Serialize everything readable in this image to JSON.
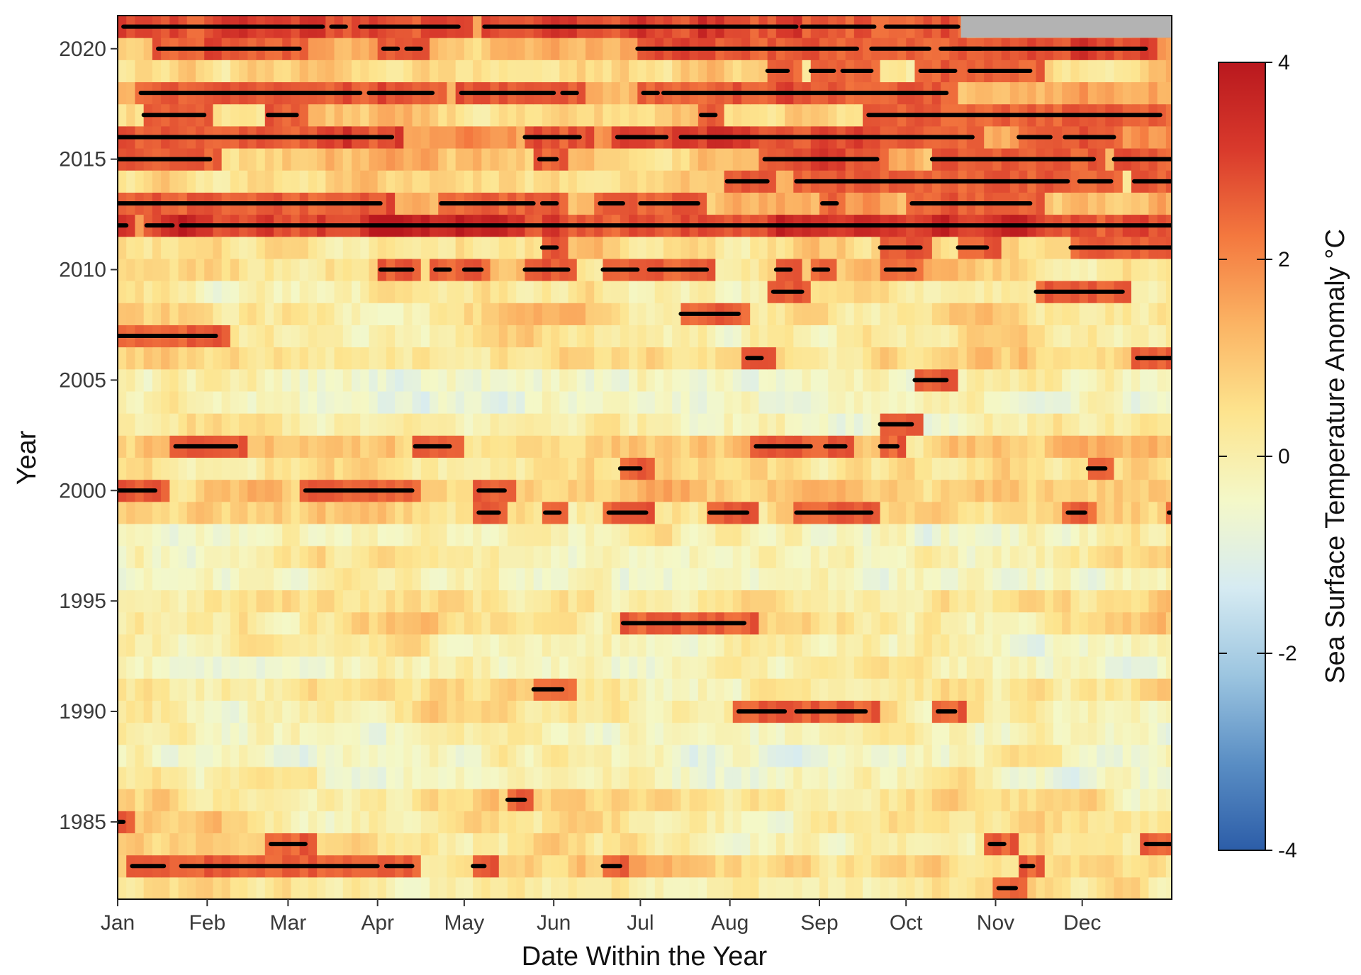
{
  "chart_data": {
    "type": "heatmap",
    "title": "",
    "xlabel": "Date Within the Year",
    "ylabel": "Year",
    "x_tick_labels": [
      "Jan",
      "Feb",
      "Mar",
      "Apr",
      "May",
      "Jun",
      "Jul",
      "Aug",
      "Sep",
      "Oct",
      "Nov",
      "Dec"
    ],
    "x_tick_days": [
      1,
      32,
      60,
      91,
      121,
      152,
      182,
      213,
      244,
      274,
      305,
      335
    ],
    "xlim": [
      1,
      366
    ],
    "y_ticks": [
      1985,
      1990,
      1995,
      2000,
      2005,
      2010,
      2015,
      2020
    ],
    "ylim": [
      1981.5,
      2021.5
    ],
    "years": [
      1982,
      2021
    ],
    "colorbar": {
      "label": "Sea Surface Temperature Anomaly °C",
      "ticks": [
        4,
        2,
        0,
        -2,
        -4
      ],
      "range": [
        -4,
        4
      ],
      "colors": [
        "#2c5da8",
        "#5a8ec4",
        "#9cc5e0",
        "#d6ebf2",
        "#f4f8c8",
        "#fde48e",
        "#fbb464",
        "#f4793f",
        "#d93a2c",
        "#b9181e"
      ]
    },
    "no_data_color": "#b3b3b3",
    "no_data": {
      "year": 2021,
      "start_day": 293,
      "end_day": 366
    },
    "cell_anomaly_by_year": [
      {
        "year": 1982,
        "mean": 0.1
      },
      {
        "year": 1983,
        "mean": 0.6
      },
      {
        "year": 1984,
        "mean": 0.3
      },
      {
        "year": 1985,
        "mean": 0.3
      },
      {
        "year": 1986,
        "mean": 0.3
      },
      {
        "year": 1987,
        "mean": -0.1
      },
      {
        "year": 1988,
        "mean": -0.3
      },
      {
        "year": 1989,
        "mean": -0.2
      },
      {
        "year": 1990,
        "mean": 0.2
      },
      {
        "year": 1991,
        "mean": 0.3
      },
      {
        "year": 1992,
        "mean": -0.2
      },
      {
        "year": 1993,
        "mean": 0.0
      },
      {
        "year": 1994,
        "mean": 0.4
      },
      {
        "year": 1995,
        "mean": 0.4
      },
      {
        "year": 1996,
        "mean": -0.3
      },
      {
        "year": 1997,
        "mean": 0.0
      },
      {
        "year": 1998,
        "mean": -0.2
      },
      {
        "year": 1999,
        "mean": 0.6
      },
      {
        "year": 2000,
        "mean": 0.7
      },
      {
        "year": 2001,
        "mean": 0.3
      },
      {
        "year": 2002,
        "mean": 0.8
      },
      {
        "year": 2003,
        "mean": 0.0
      },
      {
        "year": 2004,
        "mean": -0.5
      },
      {
        "year": 2005,
        "mean": -0.3
      },
      {
        "year": 2006,
        "mean": 0.6
      },
      {
        "year": 2007,
        "mean": 0.2
      },
      {
        "year": 2008,
        "mean": 0.4
      },
      {
        "year": 2009,
        "mean": 0.1
      },
      {
        "year": 2010,
        "mean": 0.8
      },
      {
        "year": 2011,
        "mean": 0.6
      },
      {
        "year": 2012,
        "mean": 2.0
      },
      {
        "year": 2013,
        "mean": 1.3
      },
      {
        "year": 2014,
        "mean": 0.7
      },
      {
        "year": 2015,
        "mean": 1.1
      },
      {
        "year": 2016,
        "mean": 1.5
      },
      {
        "year": 2017,
        "mean": 0.8
      },
      {
        "year": 2018,
        "mean": 1.2
      },
      {
        "year": 2019,
        "mean": 0.6
      },
      {
        "year": 2020,
        "mean": 1.3
      },
      {
        "year": 2021,
        "mean": 1.6
      }
    ],
    "warm_events": [
      {
        "year": 2021,
        "segments": [
          [
            3,
            72
          ],
          [
            75,
            80
          ],
          [
            85,
            119
          ],
          [
            128,
            236
          ],
          [
            238,
            263
          ],
          [
            267,
            292
          ]
        ]
      },
      {
        "year": 2020,
        "segments": [
          [
            15,
            64
          ],
          [
            93,
            98
          ],
          [
            101,
            106
          ],
          [
            181,
            257
          ],
          [
            262,
            282
          ],
          [
            286,
            300
          ],
          [
            290,
            357
          ]
        ]
      },
      {
        "year": 2019,
        "segments": [
          [
            226,
            233
          ],
          [
            241,
            249
          ],
          [
            252,
            262
          ],
          [
            279,
            291
          ],
          [
            296,
            317
          ]
        ]
      },
      {
        "year": 2018,
        "segments": [
          [
            9,
            85
          ],
          [
            88,
            110
          ],
          [
            120,
            152
          ],
          [
            155,
            160
          ],
          [
            183,
            188
          ],
          [
            190,
            288
          ]
        ]
      },
      {
        "year": 2017,
        "segments": [
          [
            10,
            31
          ],
          [
            53,
            63
          ],
          [
            203,
            208
          ],
          [
            261,
            362
          ]
        ]
      },
      {
        "year": 2016,
        "segments": [
          [
            1,
            96
          ],
          [
            142,
            161
          ],
          [
            174,
            191
          ],
          [
            196,
            297
          ],
          [
            313,
            324
          ],
          [
            329,
            346
          ]
        ]
      },
      {
        "year": 2015,
        "segments": [
          [
            1,
            33
          ],
          [
            147,
            153
          ],
          [
            225,
            264
          ],
          [
            283,
            339
          ],
          [
            346,
            366
          ]
        ]
      },
      {
        "year": 2014,
        "segments": [
          [
            212,
            226
          ],
          [
            236,
            330
          ],
          [
            334,
            345
          ],
          [
            353,
            366
          ]
        ]
      },
      {
        "year": 2013,
        "segments": [
          [
            1,
            92
          ],
          [
            113,
            145
          ],
          [
            148,
            153
          ],
          [
            168,
            176
          ],
          [
            182,
            202
          ],
          [
            245,
            250
          ],
          [
            276,
            317
          ]
        ]
      },
      {
        "year": 2012,
        "segments": [
          [
            1,
            4
          ],
          [
            11,
            20
          ],
          [
            23,
            366
          ]
        ]
      },
      {
        "year": 2011,
        "segments": [
          [
            148,
            153
          ],
          [
            265,
            279
          ],
          [
            292,
            302
          ],
          [
            331,
            366
          ]
        ]
      },
      {
        "year": 2010,
        "segments": [
          [
            92,
            103
          ],
          [
            111,
            116
          ],
          [
            121,
            127
          ],
          [
            142,
            157
          ],
          [
            169,
            181
          ],
          [
            185,
            205
          ],
          [
            229,
            234
          ],
          [
            242,
            247
          ],
          [
            267,
            277
          ]
        ]
      },
      {
        "year": 2009,
        "segments": [
          [
            228,
            238
          ],
          [
            319,
            349
          ]
        ]
      },
      {
        "year": 2008,
        "segments": [
          [
            196,
            216
          ]
        ]
      },
      {
        "year": 2007,
        "segments": [
          [
            1,
            35
          ]
        ]
      },
      {
        "year": 2006,
        "segments": [
          [
            219,
            224
          ],
          [
            354,
            366
          ]
        ]
      },
      {
        "year": 2005,
        "segments": [
          [
            277,
            288
          ]
        ]
      },
      {
        "year": 2003,
        "segments": [
          [
            265,
            276
          ]
        ]
      },
      {
        "year": 2002,
        "segments": [
          [
            21,
            42
          ],
          [
            104,
            116
          ],
          [
            222,
            241
          ],
          [
            246,
            253
          ],
          [
            265,
            271
          ]
        ]
      },
      {
        "year": 2001,
        "segments": [
          [
            175,
            182
          ],
          [
            337,
            343
          ]
        ]
      },
      {
        "year": 2000,
        "segments": [
          [
            1,
            14
          ],
          [
            66,
            103
          ],
          [
            126,
            135
          ]
        ]
      },
      {
        "year": 1999,
        "segments": [
          [
            126,
            133
          ],
          [
            149,
            154
          ],
          [
            171,
            184
          ],
          [
            206,
            219
          ],
          [
            236,
            262
          ],
          [
            330,
            336
          ],
          [
            365,
            366
          ]
        ]
      },
      {
        "year": 1994,
        "segments": [
          [
            176,
            218
          ]
        ]
      },
      {
        "year": 1991,
        "segments": [
          [
            145,
            155
          ]
        ]
      },
      {
        "year": 1990,
        "segments": [
          [
            216,
            232
          ],
          [
            236,
            260
          ],
          [
            285,
            291
          ]
        ]
      },
      {
        "year": 1986,
        "segments": [
          [
            136,
            142
          ]
        ]
      },
      {
        "year": 1985,
        "segments": [
          [
            1,
            3
          ]
        ]
      },
      {
        "year": 1984,
        "segments": [
          [
            54,
            66
          ],
          [
            303,
            308
          ],
          [
            357,
            366
          ]
        ]
      },
      {
        "year": 1983,
        "segments": [
          [
            6,
            17
          ],
          [
            23,
            91
          ],
          [
            94,
            103
          ],
          [
            124,
            128
          ],
          [
            169,
            175
          ],
          [
            314,
            318
          ]
        ]
      },
      {
        "year": 1982,
        "segments": [
          [
            306,
            312
          ]
        ]
      }
    ]
  }
}
